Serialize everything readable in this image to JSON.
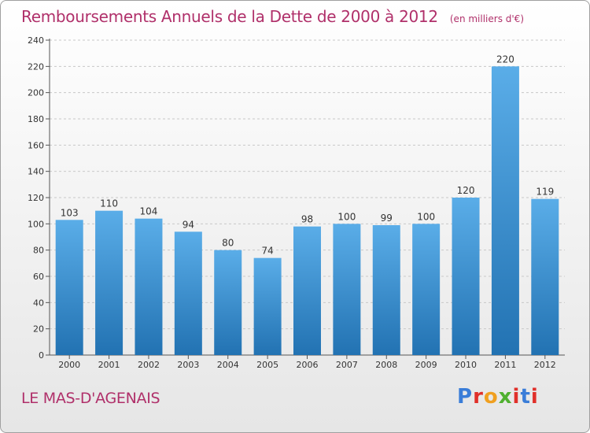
{
  "title": "Remboursements Annuels de la Dette de 2000 à 2012",
  "subtitle": "(en milliers d'€)",
  "city": "LE MAS-D'AGENAIS",
  "logo_text": "Proxiti",
  "colors": {
    "title": "#b0306a",
    "bar_top": "#5aade8",
    "bar_bottom": "#2272b2"
  },
  "chart_data": {
    "type": "bar",
    "title": "Remboursements Annuels de la Dette de 2000 à 2012",
    "subtitle": "(en milliers d'€)",
    "xlabel": "",
    "ylabel": "",
    "ylim": [
      0,
      240
    ],
    "yticks": [
      0,
      20,
      40,
      60,
      80,
      100,
      120,
      140,
      160,
      180,
      200,
      220,
      240
    ],
    "grid": true,
    "categories": [
      "2000",
      "2001",
      "2002",
      "2003",
      "2004",
      "2005",
      "2006",
      "2007",
      "2008",
      "2009",
      "2010",
      "2011",
      "2012"
    ],
    "values": [
      103,
      110,
      104,
      94,
      80,
      74,
      98,
      100,
      99,
      100,
      120,
      220,
      119
    ]
  }
}
